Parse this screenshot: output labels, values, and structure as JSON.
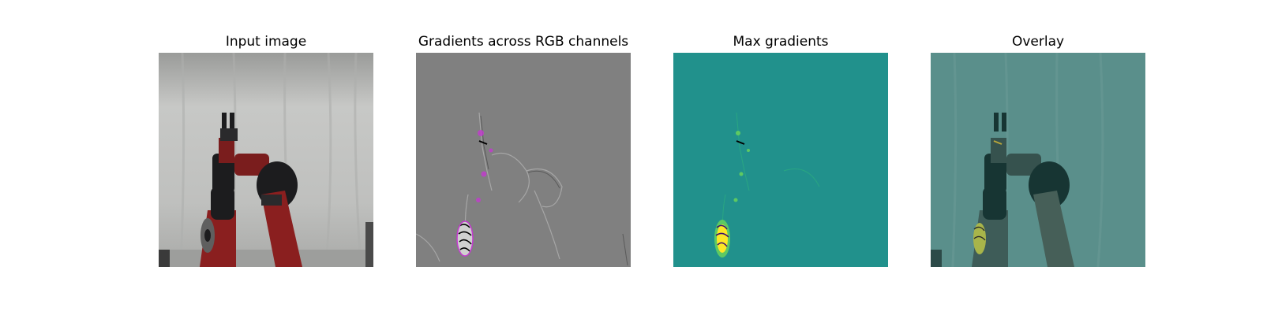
{
  "panels": [
    {
      "title": "Input image"
    },
    {
      "title": "Gradients across RGB channels"
    },
    {
      "title": "Max gradients"
    },
    {
      "title": "Overlay"
    }
  ],
  "colors": {
    "background": "#ffffff",
    "curtain": "#c4c5c3",
    "robot_red": "#8a1f1f",
    "robot_black": "#1c1c1e",
    "gradient_gray": "#808080",
    "viridis_mid": "#21918c",
    "viridis_high": "#fde725",
    "overlay_tint": "#4e8a86"
  }
}
